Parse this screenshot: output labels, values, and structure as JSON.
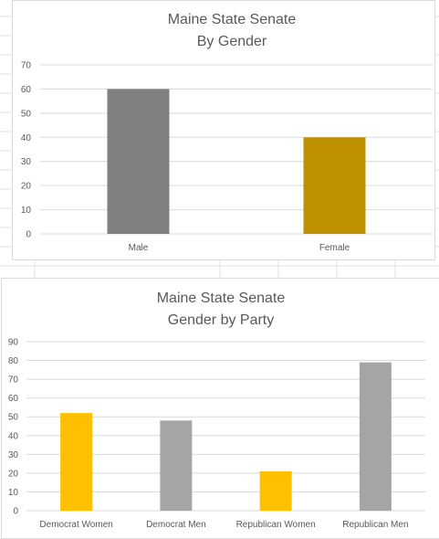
{
  "chart_data": [
    {
      "type": "bar",
      "title": [
        "Maine State Senate",
        "By Gender"
      ],
      "categories": [
        "Male",
        "Female"
      ],
      "values": [
        60,
        40
      ],
      "colors": [
        "#808080",
        "#bf9000"
      ],
      "ylim": [
        0,
        70
      ],
      "yticks": [
        "0",
        "10",
        "20",
        "30",
        "40",
        "50",
        "60",
        "70"
      ],
      "ytick_values": [
        0,
        10,
        20,
        30,
        40,
        50,
        60,
        70
      ],
      "grid": true,
      "legend": "none"
    },
    {
      "type": "bar",
      "title": [
        "Maine State Senate",
        "Gender by Party"
      ],
      "categories": [
        "Democrat Women",
        "Democrat Men",
        "Republican Women",
        "Republican Men"
      ],
      "values": [
        52,
        48,
        21,
        79
      ],
      "colors": [
        "#ffc000",
        "#a5a5a5",
        "#ffc000",
        "#a5a5a5"
      ],
      "ylim": [
        0,
        90
      ],
      "yticks": [
        "0",
        "10",
        "20",
        "30",
        "40",
        "50",
        "60",
        "70",
        "80",
        "90"
      ],
      "ytick_values": [
        0,
        10,
        20,
        30,
        40,
        50,
        60,
        70,
        80,
        90
      ],
      "grid": true,
      "legend": "none"
    }
  ]
}
